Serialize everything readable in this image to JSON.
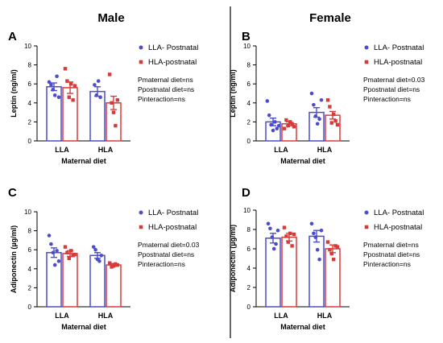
{
  "columns": [
    {
      "title": "Male"
    },
    {
      "title": "Female"
    }
  ],
  "colors": {
    "lla": "#4c4ccc",
    "hla": "#d83a3a",
    "axis": "#000000"
  },
  "chart_data": [
    {
      "type": "bar",
      "panel_label": "A",
      "ylabel": "Leptin (ng/ml)",
      "xlabel": "Maternal diet",
      "ylim": [
        0,
        10
      ],
      "yticks": [
        "0",
        "2",
        "4",
        "6",
        "8",
        "10"
      ],
      "categories": [
        "LLA",
        "HLA"
      ],
      "legend": [
        "LLA- Postnatal",
        "HLA-postnatal"
      ],
      "stats": [
        "Pmaternal diet=ns",
        "Ppostnatal diet=ns",
        "Pinteraction=ns"
      ],
      "series": [
        {
          "name": "LLA- Postnatal",
          "values": [
            5.7,
            5.2
          ],
          "errors": [
            0.4,
            0.5
          ],
          "points": [
            [
              6.2,
              5.9,
              5.4,
              4.8,
              6.8,
              4.6
            ],
            [
              5.9,
              4.8,
              6.3,
              4.6
            ]
          ]
        },
        {
          "name": "HLA-postnatal",
          "values": [
            5.6,
            4.0
          ],
          "errors": [
            0.6,
            0.7
          ],
          "points": [
            [
              7.6,
              6.3,
              4.6,
              6.0,
              4.3,
              5.8
            ],
            [
              7.0,
              4.0,
              3.0,
              1.6,
              4.3
            ]
          ]
        }
      ]
    },
    {
      "type": "bar",
      "panel_label": "B",
      "ylabel": "Leptin (ng/ml)",
      "xlabel": "Maternal diet",
      "ylim": [
        0,
        10
      ],
      "yticks": [
        "0",
        "2",
        "4",
        "6",
        "8",
        "10"
      ],
      "categories": [
        "LLA",
        "HLA"
      ],
      "legend": [
        "LLA- Postnatal",
        "HLA-postnatal"
      ],
      "stats": [
        "Pmaternal diet=0.03",
        "Ppostnatal diet=ns",
        "Pinteraction=ns"
      ],
      "series": [
        {
          "name": "LLA- Postnatal",
          "values": [
            2.0,
            3.0
          ],
          "errors": [
            0.4,
            0.5
          ],
          "points": [
            [
              4.2,
              2.7,
              1.7,
              1.1,
              2.0,
              1.3,
              1.6
            ],
            [
              5.0,
              3.8,
              2.6,
              1.8,
              2.3,
              4.3
            ]
          ]
        },
        {
          "name": "HLA-postnatal",
          "values": [
            1.8,
            2.7
          ],
          "errors": [
            0.2,
            0.4
          ],
          "points": [
            [
              1.3,
              2.2,
              1.6,
              2.0,
              1.8,
              1.5
            ],
            [
              4.3,
              3.6,
              1.9,
              2.8,
              2.1,
              1.7
            ]
          ]
        }
      ]
    },
    {
      "type": "bar",
      "panel_label": "C",
      "ylabel": "Adiponectin (µg/ml)",
      "xlabel": "Maternal diet",
      "ylim": [
        0,
        10
      ],
      "yticks": [
        "0",
        "2",
        "4",
        "6",
        "8",
        "10"
      ],
      "categories": [
        "LLA",
        "HLA"
      ],
      "legend": [
        "LLA- Postnatal",
        "HLA-postnatal"
      ],
      "stats": [
        "Pmaternal diet=0.03",
        "Ppostnatal diet=ns",
        "Pinteraction=ns"
      ],
      "series": [
        {
          "name": "LLA- Postnatal",
          "values": [
            5.7,
            5.4
          ],
          "errors": [
            0.5,
            0.3
          ],
          "points": [
            [
              7.5,
              6.6,
              5.7,
              4.4,
              5.9,
              4.8
            ],
            [
              6.3,
              6.0,
              5.0,
              4.8,
              5.4
            ]
          ]
        },
        {
          "name": "HLA-postnatal",
          "values": [
            5.6,
            4.4
          ],
          "errors": [
            0.3,
            0.15
          ],
          "points": [
            [
              6.3,
              5.7,
              5.1,
              5.9,
              5.4,
              5.5
            ],
            [
              4.6,
              4.2,
              4.3,
              4.5,
              4.4
            ]
          ]
        }
      ]
    },
    {
      "type": "bar",
      "panel_label": "D",
      "ylabel": "Adiponectin (µg/ml)",
      "xlabel": "Maternal diet",
      "ylim": [
        0,
        10
      ],
      "yticks": [
        "0",
        "2",
        "4",
        "6",
        "8",
        "10"
      ],
      "categories": [
        "LLA",
        "HLA"
      ],
      "legend": [
        "LLA- Postnatal",
        "HLA-postnatal"
      ],
      "stats": [
        "Pmaternal diet=ns",
        "Ppostnatal diet=ns",
        "Pinteraction=ns"
      ],
      "series": [
        {
          "name": "LLA- Postnatal",
          "values": [
            7.1,
            7.3
          ],
          "errors": [
            0.5,
            0.6
          ],
          "points": [
            [
              8.6,
              8.1,
              7.2,
              6.0,
              6.5,
              7.9
            ],
            [
              8.6,
              7.6,
              7.2,
              5.9,
              4.9,
              7.9
            ]
          ]
        },
        {
          "name": "HLA-postnatal",
          "values": [
            7.2,
            6.0
          ],
          "errors": [
            0.4,
            0.4
          ],
          "points": [
            [
              8.2,
              7.3,
              6.7,
              7.6,
              6.3,
              7.5
            ],
            [
              6.7,
              5.9,
              5.5,
              4.9,
              6.3,
              6.2
            ]
          ]
        }
      ]
    }
  ]
}
